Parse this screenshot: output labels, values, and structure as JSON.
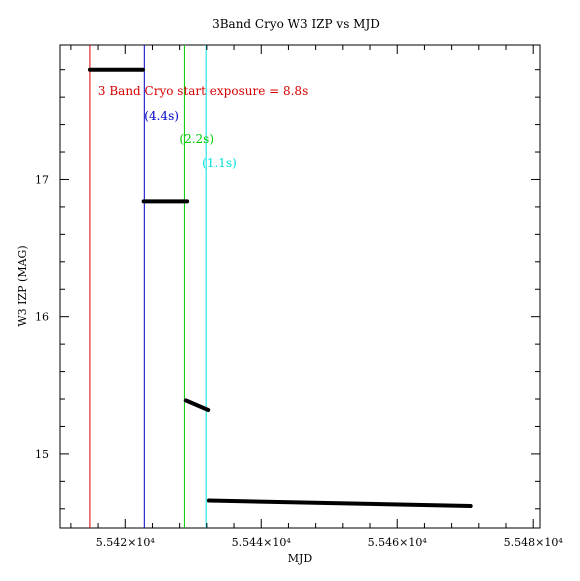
{
  "chart_data": {
    "type": "scatter",
    "title": "3Band Cryo  W3 IZP vs MJD",
    "xlabel": "MJD",
    "ylabel": "W3 IZP (MAG)",
    "xlim": [
      55410.4,
      55481.0
    ],
    "ylim": [
      14.46,
      17.98
    ],
    "grid": false,
    "x_ticks": [
      {
        "value": 55420,
        "label": "5.542×10⁴"
      },
      {
        "value": 55440,
        "label": "5.544×10⁴"
      },
      {
        "value": 55460,
        "label": "5.546×10⁴"
      },
      {
        "value": 55480,
        "label": "5.548×10⁴"
      }
    ],
    "y_ticks": [
      {
        "value": 15,
        "label": "15"
      },
      {
        "value": 16,
        "label": "16"
      },
      {
        "value": 17,
        "label": "17"
      }
    ],
    "series": [
      {
        "color": "#000000",
        "segments": [
          {
            "x": [
              55414.8,
              55422.6
            ],
            "y": [
              17.8,
              17.8
            ]
          },
          {
            "x": [
              55422.7,
              55429.1
            ],
            "y": [
              16.84,
              16.84
            ]
          },
          {
            "x": [
              55428.9,
              55432.2
            ],
            "y": [
              15.39,
              15.32
            ]
          },
          {
            "x": [
              55432.3,
              55470.8
            ],
            "y": [
              14.66,
              14.62
            ]
          }
        ]
      }
    ],
    "annotations": [
      {
        "text": "3 Band Cryo start exposure =  8.8s",
        "x": 55414.8,
        "color": "#d40000",
        "line": true
      },
      {
        "text": "(4.4s)",
        "x": 55422.8,
        "color": "#0000c8",
        "line": true
      },
      {
        "text": "(2.2s)",
        "x": 55428.7,
        "color": "#00cc00",
        "line": true
      },
      {
        "text": "(1.1s)",
        "x": 55431.9,
        "color": "#00e0e0",
        "line": true
      }
    ]
  }
}
